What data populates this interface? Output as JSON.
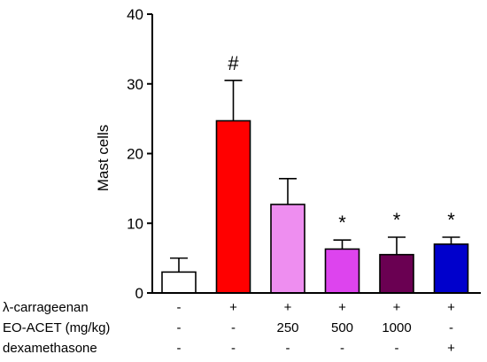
{
  "chart_data": {
    "type": "bar",
    "ylabel": "Mast cells",
    "ylim": [
      0,
      40
    ],
    "yticks": [
      0,
      10,
      20,
      30,
      40
    ],
    "bars": [
      {
        "value": 3.0,
        "error": 2.0,
        "color": "#ffffff",
        "annotation": ""
      },
      {
        "value": 24.7,
        "error": 5.8,
        "color": "#ff0000",
        "annotation": "#"
      },
      {
        "value": 12.7,
        "error": 3.7,
        "color": "#ee8ef0",
        "annotation": ""
      },
      {
        "value": 6.3,
        "error": 1.3,
        "color": "#dd44ee",
        "annotation": "*"
      },
      {
        "value": 5.5,
        "error": 2.5,
        "color": "#6a0052",
        "annotation": "*"
      },
      {
        "value": 7.0,
        "error": 1.0,
        "color": "#0000cc",
        "annotation": "*"
      }
    ],
    "conditions": [
      {
        "label": "λ-carrageenan",
        "values": [
          "-",
          "+",
          "+",
          "+",
          "+",
          "+"
        ]
      },
      {
        "label": "EO-ACET (mg/kg)",
        "values": [
          "-",
          "-",
          "250",
          "500",
          "1000",
          "-"
        ]
      },
      {
        "label": "dexamethasone",
        "values": [
          "-",
          "-",
          "-",
          "-",
          "-",
          "+"
        ]
      }
    ]
  }
}
